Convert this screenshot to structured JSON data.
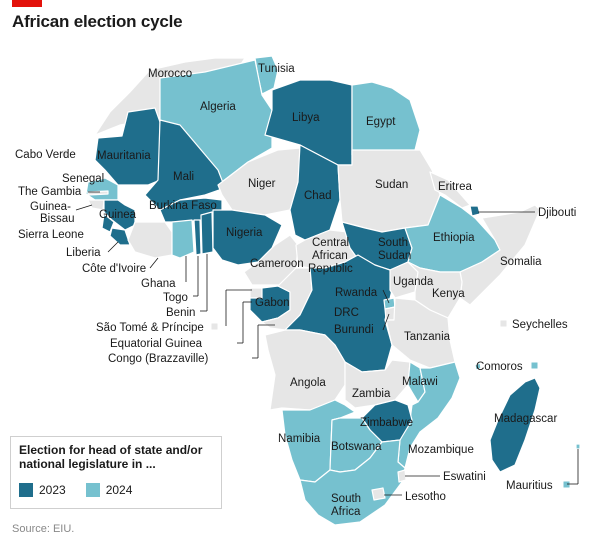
{
  "title": "African election cycle",
  "source": "Source: EIU.",
  "legend": {
    "title_line1": "Election for head of state and/or",
    "title_line2": "national legislature in ...",
    "items": [
      {
        "label": "2023",
        "color": "#1f6e8c"
      },
      {
        "label": "2024",
        "color": "#76c1cf"
      }
    ]
  },
  "colors": {
    "y2023": "#1f6e8c",
    "y2024": "#76c1cf",
    "none": "#e6e6e6",
    "border": "#ffffff"
  },
  "countries": {
    "morocco": {
      "name": "Morocco",
      "year": "none"
    },
    "tunisia": {
      "name": "Tunisia",
      "year": "2024"
    },
    "algeria": {
      "name": "Algeria",
      "year": "2024"
    },
    "libya": {
      "name": "Libya",
      "year": "2023"
    },
    "egypt": {
      "name": "Egypt",
      "year": "2024"
    },
    "cabo_verde": {
      "name": "Cabo Verde",
      "year": "none"
    },
    "mauritania": {
      "name": "Mauritania",
      "year": "2023"
    },
    "mali": {
      "name": "Mali",
      "year": "2023"
    },
    "niger": {
      "name": "Niger",
      "year": "none"
    },
    "chad": {
      "name": "Chad",
      "year": "2023"
    },
    "sudan": {
      "name": "Sudan",
      "year": "none"
    },
    "eritrea": {
      "name": "Eritrea",
      "year": "none"
    },
    "djibouti": {
      "name": "Djibouti",
      "year": "2023"
    },
    "senegal": {
      "name": "Senegal",
      "year": "2024"
    },
    "gambia": {
      "name": "The Gambia",
      "year": "none"
    },
    "guinea_bissau": {
      "name": "Guinea-\nBissau",
      "year": "none"
    },
    "guinea": {
      "name": "Guinea",
      "year": "2023"
    },
    "sierra_leone": {
      "name": "Sierra Leone",
      "year": "2023"
    },
    "liberia": {
      "name": "Liberia",
      "year": "2023"
    },
    "burkina_faso": {
      "name": "Burkina Faso",
      "year": "2023"
    },
    "cote_divoire": {
      "name": "Côte d'Ivoire",
      "year": "none"
    },
    "ghana": {
      "name": "Ghana",
      "year": "2024"
    },
    "togo": {
      "name": "Togo",
      "year": "2023"
    },
    "benin": {
      "name": "Benin",
      "year": "2023"
    },
    "nigeria": {
      "name": "Nigeria",
      "year": "2023"
    },
    "cameroon": {
      "name": "Cameroon",
      "year": "none"
    },
    "car": {
      "name": "Central\nAfrican\nRepublic",
      "year": "none"
    },
    "south_sudan": {
      "name": "South\nSudan",
      "year": "2023"
    },
    "ethiopia": {
      "name": "Ethiopia",
      "year": "2024"
    },
    "somalia": {
      "name": "Somalia",
      "year": "none"
    },
    "sao_tome": {
      "name": "São Tomé & Príncipe",
      "year": "none"
    },
    "eq_guinea": {
      "name": "Equatorial Guinea",
      "year": "none"
    },
    "gabon": {
      "name": "Gabon",
      "year": "2023"
    },
    "congo": {
      "name": "Congo (Brazzaville)",
      "year": "none"
    },
    "drc": {
      "name": "DRC",
      "year": "2023"
    },
    "uganda": {
      "name": "Uganda",
      "year": "none"
    },
    "kenya": {
      "name": "Kenya",
      "year": "none"
    },
    "rwanda": {
      "name": "Rwanda",
      "year": "2024"
    },
    "burundi": {
      "name": "Burundi",
      "year": "none"
    },
    "tanzania": {
      "name": "Tanzania",
      "year": "none"
    },
    "seychelles": {
      "name": "Seychelles",
      "year": "none"
    },
    "comoros": {
      "name": "Comoros",
      "year": "2024"
    },
    "angola": {
      "name": "Angola",
      "year": "none"
    },
    "zambia": {
      "name": "Zambia",
      "year": "none"
    },
    "malawi": {
      "name": "Malawi",
      "year": "2024"
    },
    "madagascar": {
      "name": "Madagascar",
      "year": "2023"
    },
    "zimbabwe": {
      "name": "Zimbabwe",
      "year": "2023"
    },
    "mozambique": {
      "name": "Mozambique",
      "year": "2024"
    },
    "namibia": {
      "name": "Namibia",
      "year": "2024"
    },
    "botswana": {
      "name": "Botswana",
      "year": "2024"
    },
    "mauritius": {
      "name": "Mauritius",
      "year": "2024"
    },
    "eswatini": {
      "name": "Eswatini",
      "year": "none"
    },
    "lesotho": {
      "name": "Lesotho",
      "year": "none"
    },
    "south_africa": {
      "name": "South\nAfrica",
      "year": "2024"
    }
  }
}
